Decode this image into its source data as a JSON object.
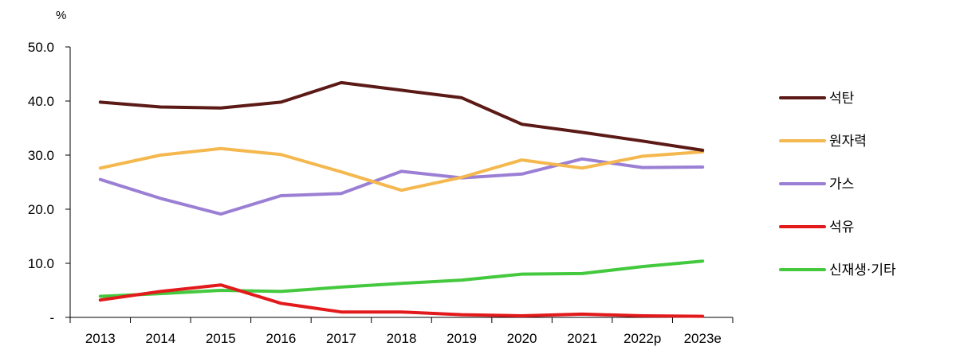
{
  "chart_data": {
    "type": "line",
    "unit_label": "%",
    "categories": [
      "2013",
      "2014",
      "2015",
      "2016",
      "2017",
      "2018",
      "2019",
      "2020",
      "2021",
      "2022p",
      "2023e"
    ],
    "ylim": [
      0,
      50
    ],
    "y_ticks": [
      {
        "value": 0,
        "label": "-"
      },
      {
        "value": 10,
        "label": "10.0"
      },
      {
        "value": 20,
        "label": "20.0"
      },
      {
        "value": 30,
        "label": "30.0"
      },
      {
        "value": 40,
        "label": "40.0"
      },
      {
        "value": 50,
        "label": "50.0"
      }
    ],
    "grid": false,
    "legend_position": "right",
    "series": [
      {
        "name": "석탄",
        "color": "#5c1a17",
        "values": [
          39.8,
          38.9,
          38.7,
          39.8,
          43.4,
          42.0,
          40.6,
          35.7,
          34.2,
          32.6,
          30.9
        ]
      },
      {
        "name": "원자력",
        "color": "#f4b84f",
        "values": [
          27.6,
          30.0,
          31.2,
          30.1,
          26.9,
          23.5,
          25.9,
          29.1,
          27.6,
          29.8,
          30.6
        ]
      },
      {
        "name": "가스",
        "color": "#9a7fd4",
        "values": [
          25.5,
          22.0,
          19.1,
          22.5,
          22.9,
          27.0,
          25.8,
          26.5,
          29.3,
          27.7,
          27.8
        ]
      },
      {
        "name": "석유",
        "color": "#e31a1c",
        "values": [
          3.2,
          4.8,
          6.0,
          2.6,
          1.0,
          1.0,
          0.5,
          0.3,
          0.6,
          0.3,
          0.2
        ]
      },
      {
        "name": "신재생·기타",
        "color": "#44c93e",
        "values": [
          3.9,
          4.4,
          5.0,
          4.8,
          5.6,
          6.3,
          6.9,
          8.0,
          8.1,
          9.4,
          10.4
        ]
      }
    ]
  }
}
